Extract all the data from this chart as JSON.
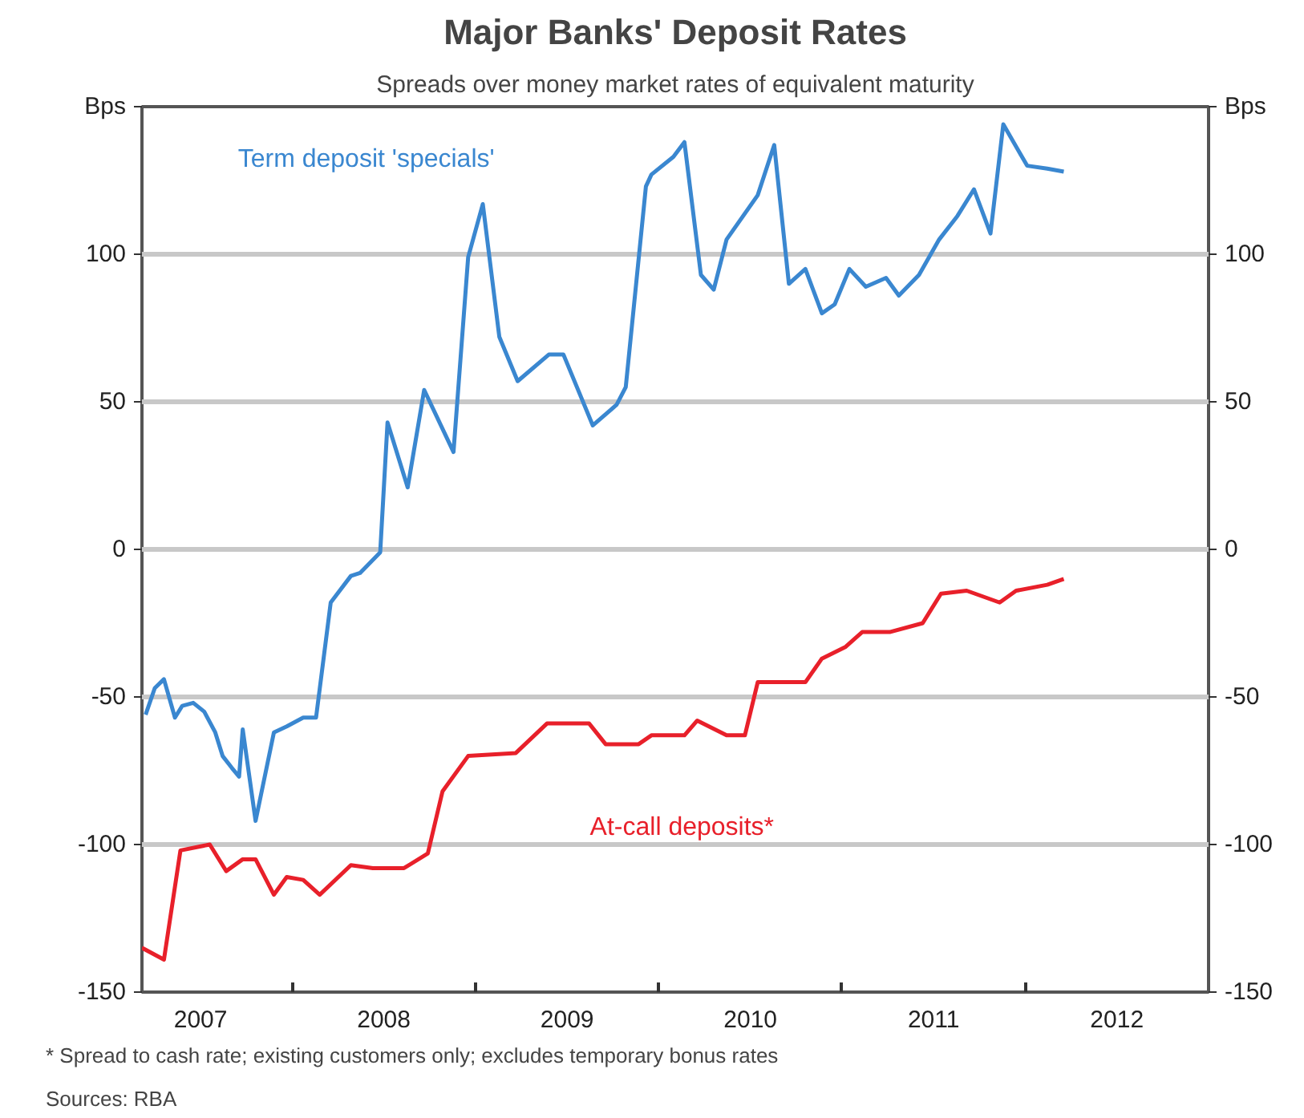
{
  "chart_data": {
    "type": "line",
    "title": "Major Banks' Deposit Rates",
    "subtitle": "Spreads over money market rates of equivalent maturity",
    "annotations": [
      "*  Spread to cash rate; existing customers only; excludes temporary bonus rates",
      "Sources: RBA"
    ],
    "xlim": [
      2007.18,
      2013.0
    ],
    "xticks": [
      {
        "value": 2007.5,
        "label": "2007"
      },
      {
        "value": 2008,
        "label": null
      },
      {
        "value": 2008.5,
        "label": "2008"
      },
      {
        "value": 2009,
        "label": null
      },
      {
        "value": 2009.5,
        "label": "2009"
      },
      {
        "value": 2010,
        "label": null
      },
      {
        "value": 2010.5,
        "label": "2010"
      },
      {
        "value": 2011,
        "label": null
      },
      {
        "value": 2011.5,
        "label": "2011"
      },
      {
        "value": 2012,
        "label": null
      },
      {
        "value": 2012.5,
        "label": "2012"
      }
    ],
    "ylim": [
      -150,
      150
    ],
    "yticks": [
      -150,
      -100,
      -50,
      0,
      50,
      100,
      {
        "value": 150,
        "label": "Bps"
      }
    ],
    "y2lim": [
      -150,
      150
    ],
    "y2ticks": [
      -150,
      -100,
      -50,
      0,
      50,
      100,
      {
        "value": 150,
        "label": "Bps"
      }
    ],
    "grid": "y",
    "line_style": "solid",
    "series": [
      {
        "name": "Term deposit 'specials'",
        "color": "#3a87d0",
        "x": [
          2007.2,
          2007.25,
          2007.3,
          2007.36,
          2007.4,
          2007.46,
          2007.52,
          2007.58,
          2007.62,
          2007.67,
          2007.71,
          2007.73,
          2007.8,
          2007.9,
          2007.97,
          2008.06,
          2008.13,
          2008.21,
          2008.32,
          2008.37,
          2008.48,
          2008.52,
          2008.63,
          2008.72,
          2008.88,
          2008.96,
          2009.04,
          2009.13,
          2009.23,
          2009.4,
          2009.48,
          2009.64,
          2009.77,
          2009.82,
          2009.93,
          2009.96,
          2010.08,
          2010.14,
          2010.23,
          2010.3,
          2010.37,
          2010.54,
          2010.63,
          2010.71,
          2010.8,
          2010.89,
          2010.96,
          2011.04,
          2011.13,
          2011.24,
          2011.31,
          2011.42,
          2011.53,
          2011.63,
          2011.72,
          2011.81,
          2011.88,
          2012.01,
          2012.12,
          2012.21
        ],
        "values": [
          -56,
          -47,
          -44,
          -57,
          -53,
          -52,
          -55,
          -62,
          -70,
          -74,
          -77,
          -61,
          -92,
          -62,
          -60,
          -57,
          -57,
          -18,
          -9,
          -8,
          -1,
          43,
          21,
          54,
          33,
          99,
          117,
          72,
          57,
          66,
          66,
          42,
          49,
          55,
          123,
          127,
          133,
          138,
          93,
          88,
          105,
          120,
          137,
          90,
          95,
          80,
          83,
          95,
          89,
          92,
          86,
          93,
          105,
          113,
          122,
          107,
          144,
          130,
          129,
          128
        ]
      },
      {
        "name": "At-call deposits*",
        "color": "#e8202a",
        "x": [
          2007.18,
          2007.3,
          2007.39,
          2007.55,
          2007.64,
          2007.73,
          2007.8,
          2007.9,
          2007.97,
          2008.06,
          2008.15,
          2008.32,
          2008.44,
          2008.61,
          2008.74,
          2008.82,
          2008.96,
          2009.22,
          2009.39,
          2009.62,
          2009.71,
          2009.89,
          2009.96,
          2010.14,
          2010.21,
          2010.37,
          2010.47,
          2010.54,
          2010.8,
          2010.89,
          2011.02,
          2011.11,
          2011.26,
          2011.44,
          2011.54,
          2011.68,
          2011.86,
          2011.95,
          2012.12,
          2012.21
        ],
        "values": [
          -135,
          -139,
          -102,
          -100,
          -109,
          -105,
          -105,
          -117,
          -111,
          -112,
          -117,
          -107,
          -108,
          -108,
          -103,
          -82,
          -70,
          -69,
          -59,
          -59,
          -66,
          -66,
          -63,
          -63,
          -58,
          -63,
          -63,
          -45,
          -45,
          -37,
          -33,
          -28,
          -28,
          -25,
          -15,
          -14,
          -18,
          -14,
          -12,
          -10
        ]
      }
    ]
  }
}
